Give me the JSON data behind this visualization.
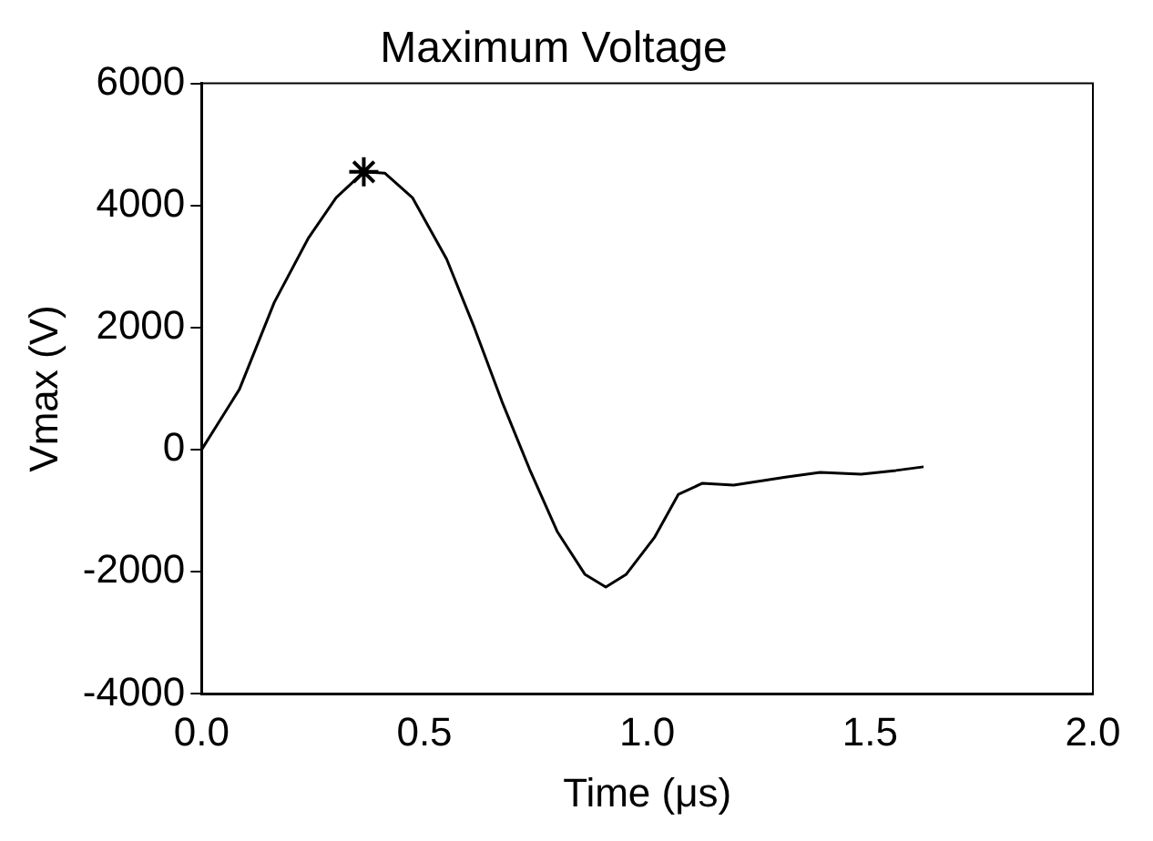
{
  "chart_data": {
    "type": "line",
    "title": "Maximum Voltage",
    "xlabel": "Time (μs)",
    "ylabel": "Vmax (V)",
    "xlim": [
      0,
      2
    ],
    "xticks": [
      {
        "value": 0,
        "label": "0.0"
      },
      {
        "value": 0.5,
        "label": "0.5"
      },
      {
        "value": 1,
        "label": "1.0"
      },
      {
        "value": 1.5,
        "label": "1.5"
      },
      {
        "value": 2,
        "label": "2.0"
      }
    ],
    "ylim": [
      -4000,
      6000
    ],
    "yticks": [
      -4000,
      -2000,
      0,
      2000,
      4000,
      6000
    ],
    "grid": false,
    "series": [
      {
        "color": "#000000",
        "marker": "none",
        "x": [
          0,
          0.085,
          0.163,
          0.24,
          0.302,
          0.364,
          0.411,
          0.473,
          0.55,
          0.612,
          0.674,
          0.736,
          0.798,
          0.86,
          0.907,
          0.953,
          1.016,
          1.07,
          1.124,
          1.194,
          1.31,
          1.388,
          1.48,
          1.558,
          1.62
        ],
        "values": [
          0,
          990,
          2410,
          3470,
          4130,
          4550,
          4530,
          4130,
          3120,
          2000,
          790,
          -320,
          -1340,
          -2040,
          -2250,
          -2040,
          -1440,
          -730,
          -550,
          -580,
          -450,
          -370,
          -400,
          -340,
          -280
        ]
      },
      {
        "type": "scatter",
        "color": "#000000",
        "marker": "cross",
        "x": [
          0.364
        ],
        "values": [
          4550
        ]
      }
    ]
  }
}
